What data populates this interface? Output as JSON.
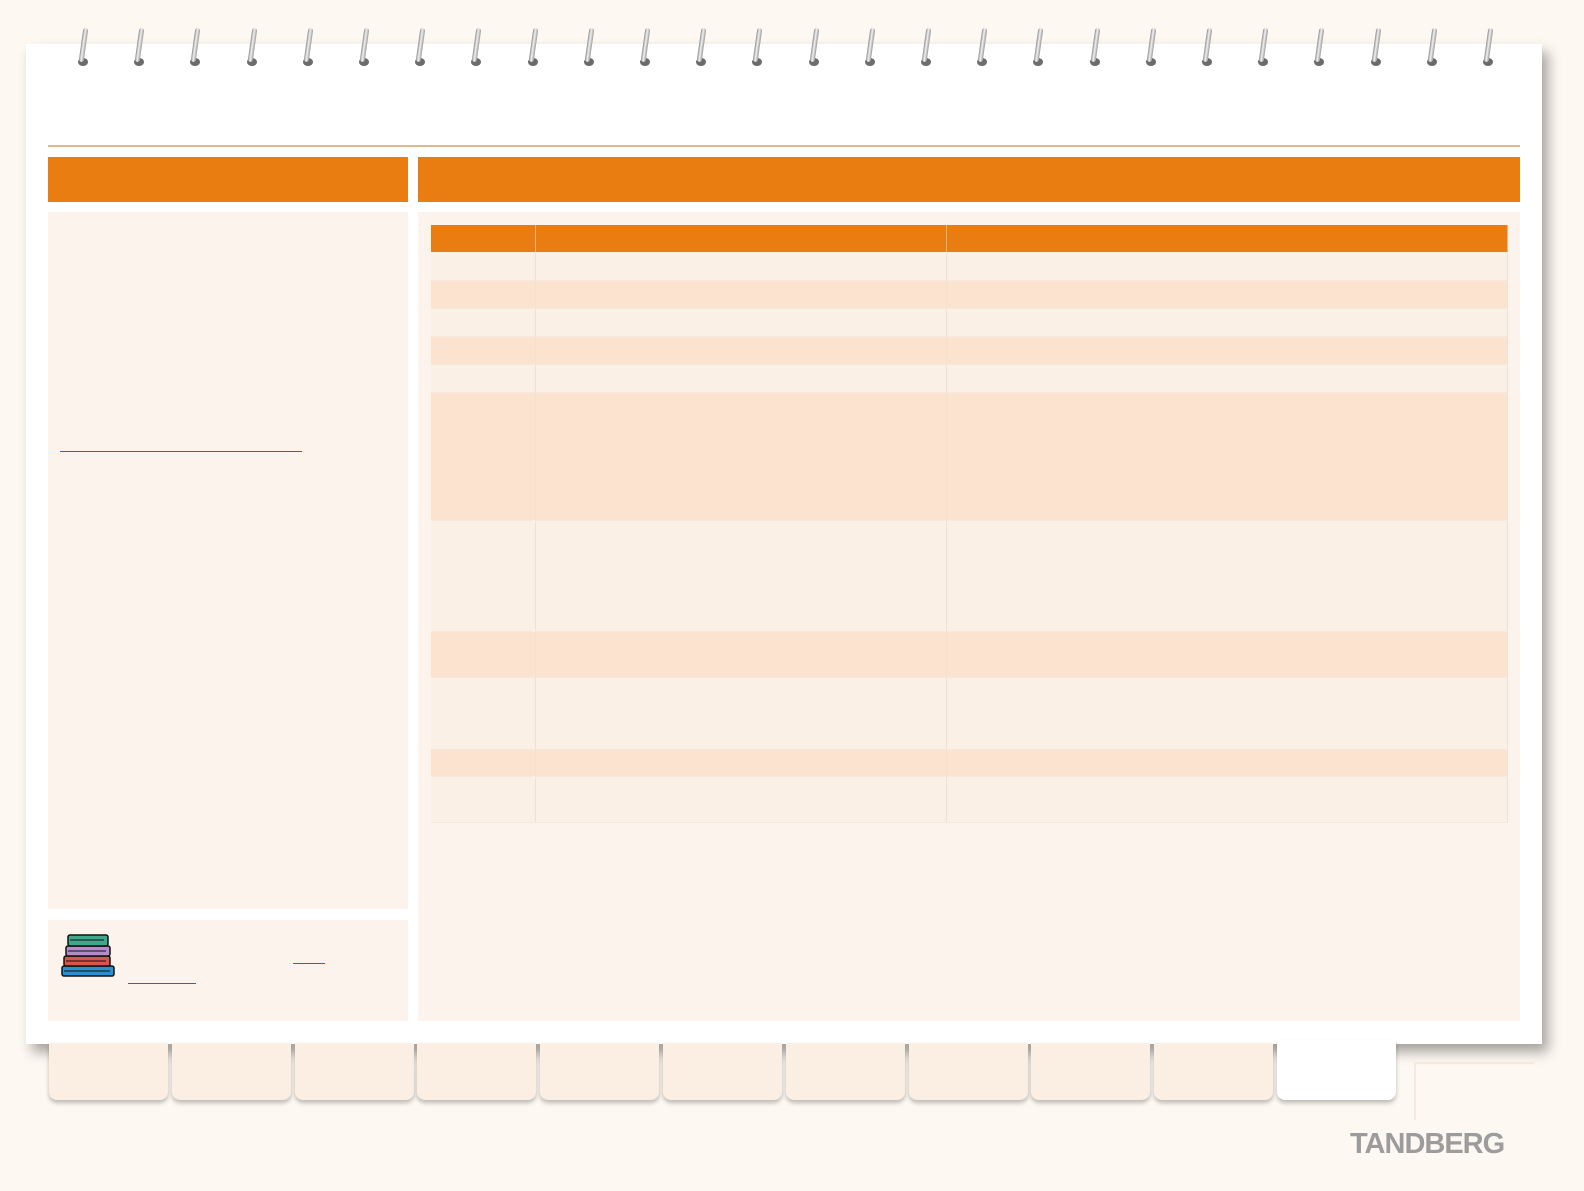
{
  "header": {
    "left_title": "",
    "right_title": ""
  },
  "sidebar": {
    "link_text": ""
  },
  "note": {
    "link1": "",
    "link2": ""
  },
  "table": {
    "headers": [
      "",
      "",
      ""
    ],
    "rows": [
      [
        "",
        "",
        ""
      ],
      [
        "",
        "",
        ""
      ],
      [
        "",
        "",
        ""
      ],
      [
        "",
        "",
        ""
      ],
      [
        "",
        "",
        ""
      ],
      [
        "",
        "",
        ""
      ],
      [
        "",
        "",
        ""
      ],
      [
        "",
        "",
        ""
      ],
      [
        "",
        "",
        ""
      ],
      [
        "",
        "",
        ""
      ],
      [
        "",
        "",
        ""
      ]
    ]
  },
  "tabs": [
    "",
    "",
    "",
    "",
    "",
    "",
    "",
    "",
    "",
    "",
    ""
  ],
  "active_tab_index": 10,
  "brand": "TANDBERG",
  "colors": {
    "accent": "#ea7d12",
    "panel": "#fcf4ec",
    "row_alt": "#fbe3cf",
    "link": "#1a6fc0",
    "brand_gray": "#9c9c9c"
  }
}
